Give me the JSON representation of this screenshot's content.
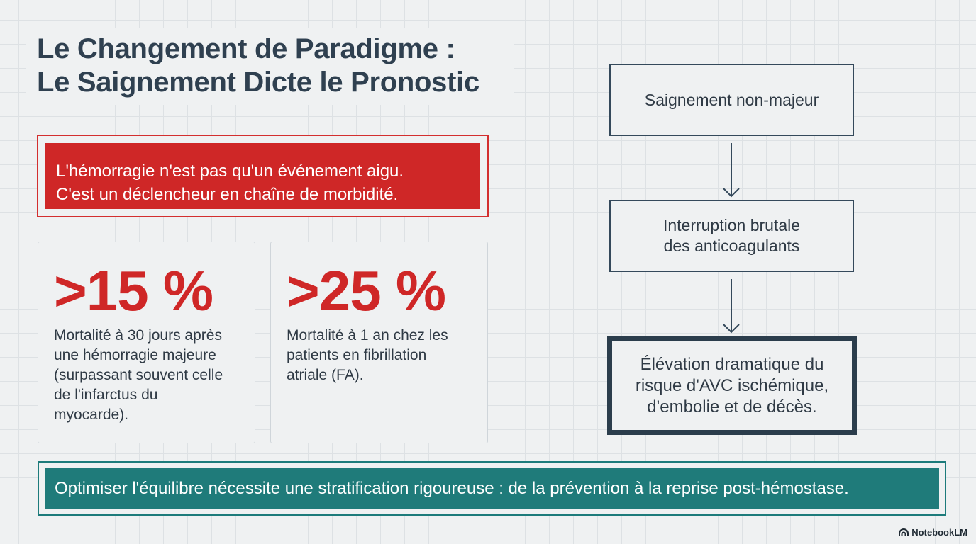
{
  "title": {
    "line1": "Le Changement de Paradigme :",
    "line2": "Le Saignement Dicte le Pronostic"
  },
  "callout": {
    "line1": "L'hémorragie n'est pas qu'un événement aigu.",
    "line2": "C'est un déclencheur en chaîne de morbidité.",
    "color": "#cf2727"
  },
  "stats": [
    {
      "value": ">15 %",
      "description": [
        "Mortalité à 30 jours après",
        "une hémorragie majeure",
        "(surpassant souvent celle",
        "de l'infarctus du",
        "myocarde)."
      ]
    },
    {
      "value": ">25 %",
      "description": [
        "Mortalité à 1 an chez les",
        "patients en fibrillation",
        "atriale (FA)."
      ]
    }
  ],
  "flow": {
    "steps": [
      {
        "lines": [
          "Saignement non-majeur"
        ]
      },
      {
        "lines": [
          "Interruption brutale",
          "des anticoagulants"
        ]
      },
      {
        "lines": [
          "Élévation dramatique du",
          "risque d'AVC ischémique,",
          "d'embolie et de décès."
        ]
      }
    ],
    "arrow_icon": "arrow-down-icon"
  },
  "banner": {
    "text": "Optimiser l'équilibre nécessite une stratification rigoureuse : de la prévention à la reprise post-hémostase.",
    "color": "#1f7b7a"
  },
  "watermark": {
    "label": "NotebookLM",
    "icon": "notebooklm-logo-icon"
  }
}
